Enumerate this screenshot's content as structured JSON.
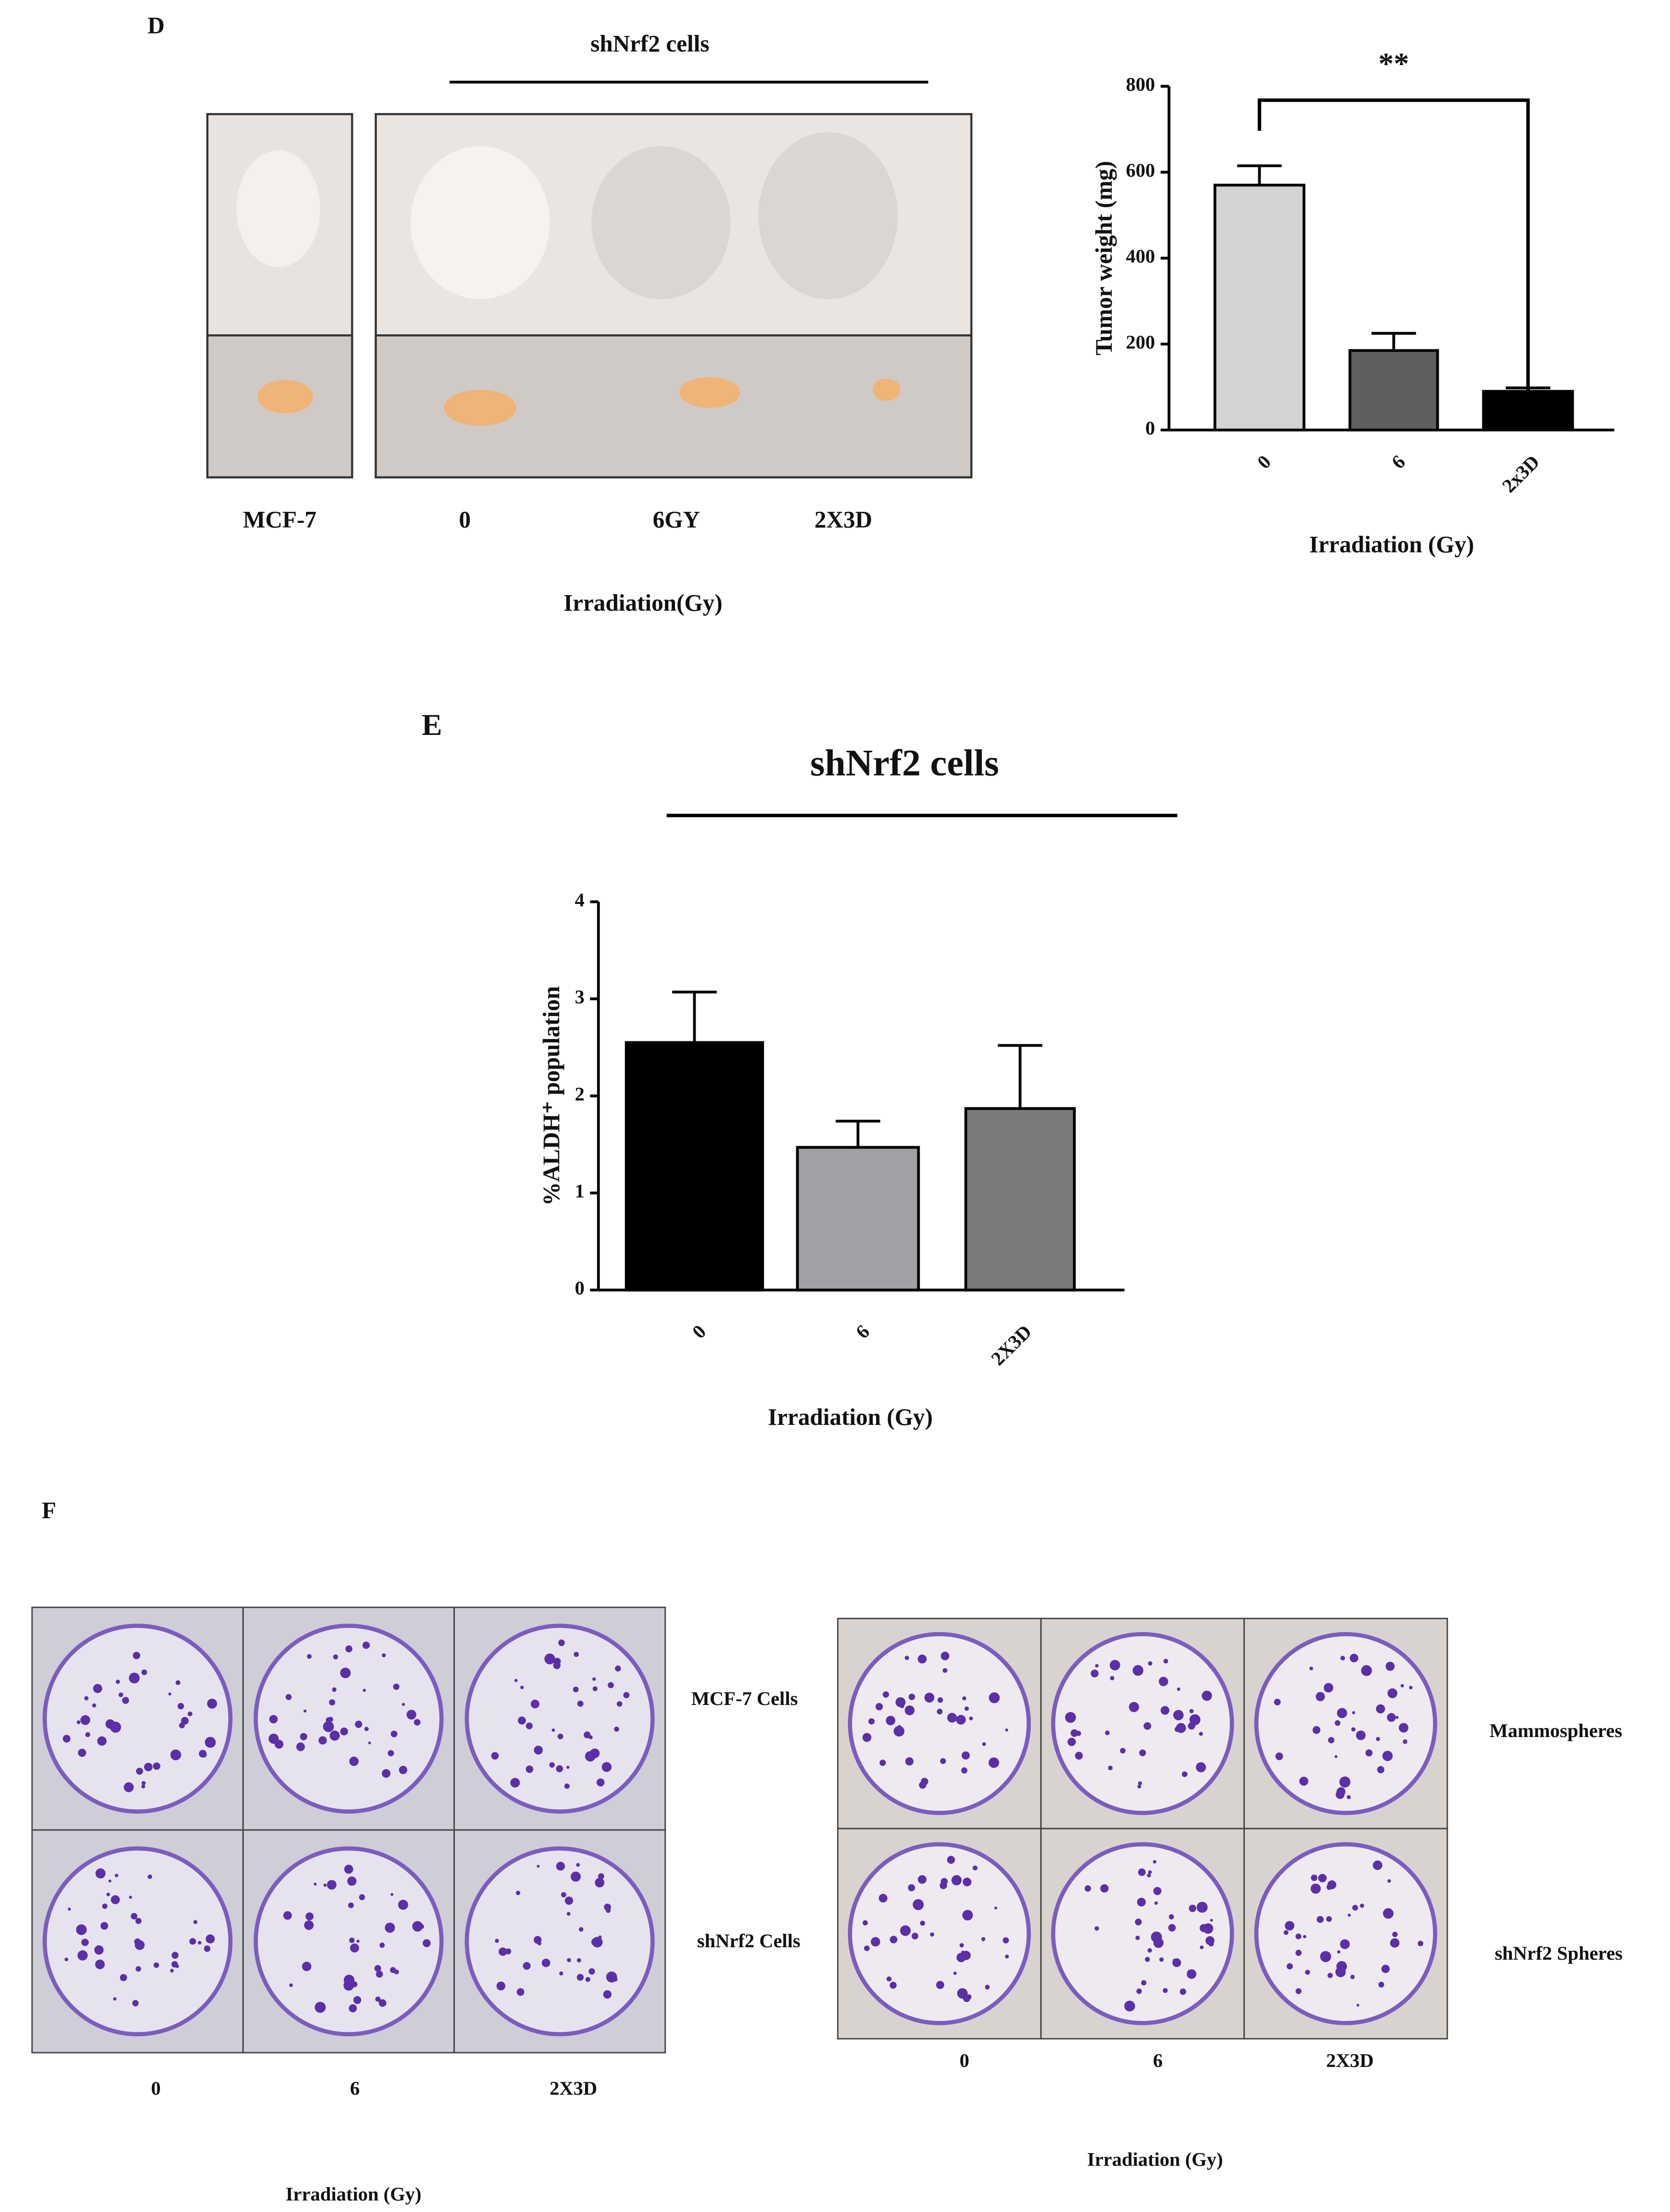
{
  "chart_data": [
    {
      "type": "bar",
      "ylabel": "Tumor weight (mg)",
      "xlabel": "Irradiation (Gy)",
      "categories": [
        "0",
        "6",
        "2x3D"
      ],
      "values": [
        570,
        185,
        90
      ],
      "errors": [
        45,
        40,
        8
      ],
      "colors": [
        "#d3d3d3",
        "#5f5f5f",
        "#000000"
      ],
      "ylim": [
        0,
        800
      ],
      "yticks": [
        0,
        200,
        400,
        600,
        800
      ],
      "annotation": "**"
    },
    {
      "type": "bar",
      "title": "shNrf2 cells",
      "ylabel": "%ALDH⁺ population",
      "xlabel": "Irradiation (Gy)",
      "categories": [
        "0",
        "6",
        "2X3D"
      ],
      "values": [
        2.55,
        1.47,
        1.87
      ],
      "errors": [
        0.52,
        0.27,
        0.65
      ],
      "colors": [
        "#000000",
        "#a0a0a5",
        "#7a7a7a"
      ],
      "ylim": [
        0,
        4
      ],
      "yticks": [
        0,
        1,
        2,
        3,
        4
      ]
    }
  ],
  "figure": {
    "panel_d": {
      "label": "D",
      "group_label": "shNrf2 cells",
      "photo_labels": [
        "MCF-7",
        "0",
        "6GY",
        "2X3D"
      ],
      "xlabel": "Irradiation(Gy)"
    },
    "panel_e": {
      "label": "E"
    },
    "panel_f": {
      "label": "F",
      "left_rows": [
        "MCF-7 Cells",
        "shNrf2 Cells"
      ],
      "left_cols": [
        "0",
        "6",
        "2X3D"
      ],
      "left_xlabel": "Irradiation (Gy)",
      "right_rows": [
        "Mammospheres",
        "shNrf2 Spheres"
      ],
      "right_cols": [
        "0",
        "6",
        "2X3D"
      ],
      "right_xlabel": "Irradiation (Gy)"
    }
  }
}
